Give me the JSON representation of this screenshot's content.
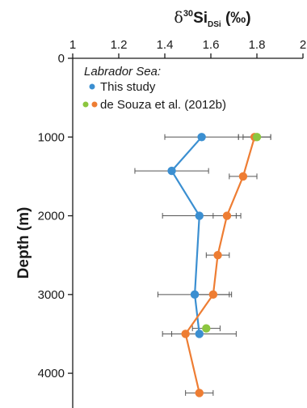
{
  "chart_data": {
    "type": "scatter",
    "title": "",
    "xlabel": {
      "prefix": "δ",
      "sup": "30",
      "main": "Si",
      "sub": "DSi",
      "unit": " (‰)"
    },
    "ylabel": "Depth (m)",
    "xlim": [
      1,
      2
    ],
    "ylim": [
      0,
      4400
    ],
    "y_inverted": true,
    "x_axis_position": "top",
    "x_ticks": [
      1,
      1.2,
      1.4,
      1.6,
      1.8,
      2
    ],
    "x_tick_labels": [
      "1",
      "1.2",
      "1.4",
      "1.6",
      "1.8",
      "2"
    ],
    "y_ticks": [
      0,
      1000,
      2000,
      3000,
      4000
    ],
    "y_tick_labels": [
      "0",
      "1000",
      "2000",
      "3000",
      "4000"
    ],
    "legend": {
      "title": "Labrador Sea:",
      "placement": "top-left",
      "entries": [
        {
          "label": "This study",
          "colors": [
            "#3b8fd1"
          ]
        },
        {
          "label": "de Souza et al. (2012b)",
          "colors": [
            "#8cc63f",
            "#ee7d33"
          ]
        }
      ]
    },
    "series": [
      {
        "name": "This study",
        "color": "#3b8fd1",
        "line": true,
        "points": [
          {
            "x": 1.56,
            "y": 1000,
            "err": 0.16
          },
          {
            "x": 1.43,
            "y": 1430,
            "err": 0.16
          },
          {
            "x": 1.55,
            "y": 2000,
            "err": 0.16
          },
          {
            "x": 1.53,
            "y": 3000,
            "err": 0.16
          },
          {
            "x": 1.55,
            "y": 3500,
            "err": 0.16
          }
        ]
      },
      {
        "name": "de Souza et al. (2012b)",
        "color": "#ee7d33",
        "line": true,
        "points": [
          {
            "x": 1.79,
            "y": 1000,
            "err": 0.07
          },
          {
            "x": 1.74,
            "y": 1500,
            "err": 0.06
          },
          {
            "x": 1.67,
            "y": 2000,
            "err": 0.06
          },
          {
            "x": 1.63,
            "y": 2500,
            "err": 0.05
          },
          {
            "x": 1.61,
            "y": 3000,
            "err": 0.07
          },
          {
            "x": 1.49,
            "y": 3500,
            "err": 0.06
          },
          {
            "x": 1.55,
            "y": 4250,
            "err": 0.06
          }
        ]
      },
      {
        "name": "de Souza et al. (2012b)",
        "color": "#8cc63f",
        "line": false,
        "points": [
          {
            "x": 1.8,
            "y": 1000,
            "err": 0.06
          },
          {
            "x": 1.58,
            "y": 3430,
            "err": 0.06
          }
        ]
      }
    ]
  }
}
